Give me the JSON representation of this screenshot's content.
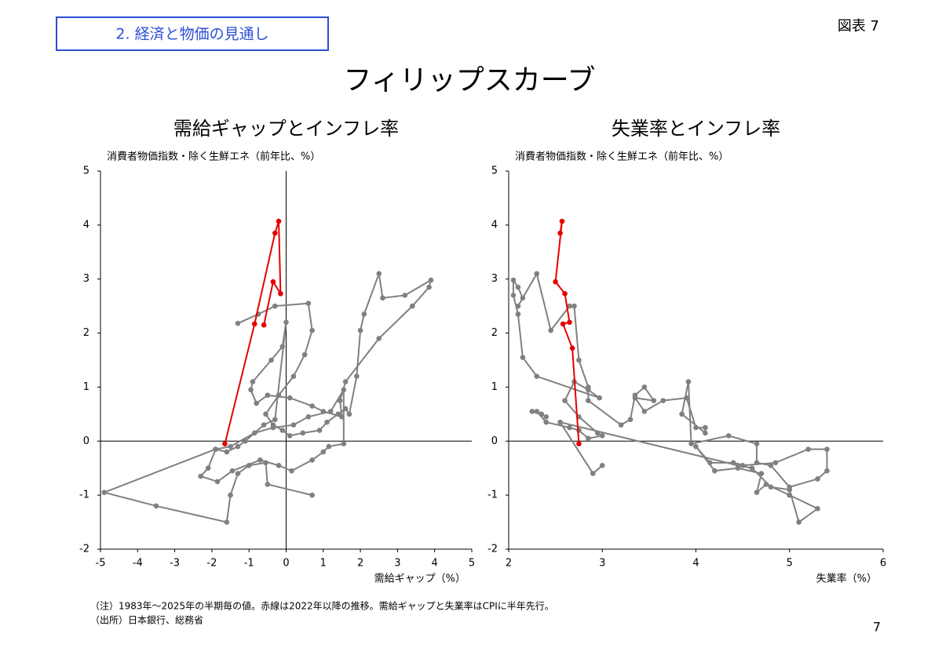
{
  "header": {
    "section": "2. 経済と物価の見通し",
    "figure_no": "図表 7",
    "title": "フィリップスカーブ"
  },
  "chart_data": [
    {
      "type": "scatter",
      "title": "需給ギャップとインフレ率",
      "y_label": "消費者物価指数・除く生鮮エネ（前年比、%）",
      "x_label": "需給ギャップ（%）",
      "xlim": [
        -5,
        5
      ],
      "xticks": [
        -5,
        -4,
        -3,
        -2,
        -1,
        0,
        1,
        2,
        3,
        4,
        5
      ],
      "ylim": [
        -2,
        5
      ],
      "yticks": [
        -2,
        -1,
        0,
        1,
        2,
        3,
        4,
        5
      ],
      "series": [
        {
          "color": "#808080",
          "x": [
            -1.3,
            -0.75,
            -0.3,
            0.6,
            0.7,
            0.5,
            0.2,
            -0.2,
            -0.55,
            -0.35,
            -0.1,
            0.1,
            0.45,
            0.9,
            1.1,
            1.4,
            1.6,
            1.7,
            1.9,
            2.0,
            2.1,
            2.5,
            2.6,
            3.2,
            3.9,
            3.85,
            3.4,
            2.5,
            1.6,
            1.45,
            1.5,
            1.0,
            0.7,
            0.1,
            -0.5,
            -0.8,
            -0.95,
            -0.9,
            -0.4,
            -0.1,
            0.0,
            -0.3,
            -0.6,
            -1.1,
            -1.3,
            -1.6,
            -1.9,
            -2.1,
            -2.3,
            -1.85,
            -1.45,
            -0.7,
            -0.2,
            0.15,
            0.7,
            1.0,
            1.15,
            1.55,
            1.55,
            1.2,
            0.6,
            0.2,
            -0.35,
            -0.85,
            -1.5,
            -1.9,
            -4.9,
            -3.5,
            -1.6,
            -1.5,
            -1.3,
            -1.0,
            -0.55,
            -0.5,
            0.7
          ],
          "values": [
            2.18,
            2.35,
            2.5,
            2.55,
            2.05,
            1.6,
            1.2,
            0.85,
            0.5,
            0.3,
            0.2,
            0.1,
            0.15,
            0.2,
            0.35,
            0.5,
            0.6,
            0.5,
            1.2,
            2.05,
            2.35,
            3.1,
            2.65,
            2.7,
            2.98,
            2.85,
            2.5,
            1.9,
            1.1,
            0.75,
            0.45,
            0.55,
            0.65,
            0.8,
            0.85,
            0.7,
            0.95,
            1.1,
            1.5,
            1.75,
            2.2,
            0.4,
            0.3,
            0.0,
            -0.1,
            -0.2,
            -0.15,
            -0.5,
            -0.65,
            -0.75,
            -0.55,
            -0.35,
            -0.45,
            -0.55,
            -0.35,
            -0.2,
            -0.1,
            -0.05,
            0.95,
            0.55,
            0.45,
            0.3,
            0.25,
            0.15,
            -0.1,
            -0.15,
            -0.95,
            -1.2,
            -1.5,
            -1.0,
            -0.6,
            -0.45,
            -0.4,
            -0.8,
            -1.0
          ]
        },
        {
          "color": "#e60000",
          "x": [
            -1.65,
            -0.85,
            -0.3,
            -0.2,
            -0.15,
            -0.35,
            -0.6
          ],
          "values": [
            -0.05,
            2.17,
            3.85,
            4.07,
            2.73,
            2.95,
            2.15
          ]
        }
      ]
    },
    {
      "type": "scatter",
      "title": "失業率とインフレ率",
      "y_label": "消費者物価指数・除く生鮮エネ（前年比、%）",
      "x_label": "失業率（%）",
      "xlim": [
        2,
        6
      ],
      "xticks": [
        2,
        3,
        4,
        5,
        6
      ],
      "ylim": [
        -2,
        5
      ],
      "yticks": [
        -2,
        -1,
        0,
        1,
        2,
        3,
        4,
        5
      ],
      "series": [
        {
          "color": "#808080",
          "x": [
            2.25,
            2.35,
            2.4,
            2.3,
            2.4,
            2.65,
            2.75,
            2.85,
            3.0,
            2.95,
            2.75,
            2.6,
            2.7,
            2.85,
            2.97,
            2.3,
            2.15,
            2.1,
            2.05,
            2.05,
            2.1,
            2.15,
            2.1,
            2.3,
            2.45,
            2.65,
            2.7,
            2.75,
            2.85,
            2.85,
            3.2,
            3.3,
            3.35,
            3.45,
            3.55,
            3.35,
            3.45,
            3.65,
            3.9,
            4.0,
            4.1,
            4.1,
            3.85,
            3.92,
            3.95,
            4.35,
            4.65,
            4.65,
            4.8,
            5.0,
            5.3,
            5.4,
            5.4,
            5.2,
            4.85,
            4.5,
            4.4,
            4.15,
            4.0,
            4.2,
            4.45,
            4.7,
            4.65,
            4.75,
            5.0,
            5.3,
            5.1,
            5.0,
            4.8,
            4.6,
            4.45,
            2.55,
            2.9,
            3.0
          ],
          "values": [
            0.55,
            0.5,
            0.45,
            0.55,
            0.35,
            0.25,
            0.2,
            0.05,
            0.1,
            0.15,
            0.45,
            0.75,
            1.1,
            0.95,
            0.8,
            1.2,
            1.55,
            2.35,
            2.7,
            2.98,
            2.85,
            2.65,
            2.5,
            3.1,
            2.05,
            2.5,
            2.5,
            1.5,
            1.0,
            0.75,
            0.3,
            0.4,
            0.85,
            1.0,
            0.75,
            0.8,
            0.55,
            0.75,
            0.8,
            0.25,
            0.25,
            0.15,
            0.5,
            1.1,
            -0.05,
            0.1,
            -0.05,
            -0.4,
            -0.45,
            -0.85,
            -0.7,
            -0.55,
            -0.15,
            -0.15,
            -0.4,
            -0.45,
            -0.4,
            -0.4,
            -0.1,
            -0.55,
            -0.5,
            -0.6,
            -0.95,
            -0.8,
            -1.0,
            -1.25,
            -1.5,
            -0.9,
            -0.85,
            -0.5,
            -0.45,
            0.35,
            -0.6,
            -0.45
          ]
        },
        {
          "color": "#e60000",
          "x": [
            2.75,
            2.68,
            2.58,
            2.65,
            2.6,
            2.5,
            2.57,
            2.55
          ],
          "values": [
            -0.05,
            1.72,
            2.17,
            2.2,
            2.73,
            2.95,
            4.07,
            3.85
          ]
        }
      ]
    }
  ],
  "notes": [
    "（注）1983年～2025年の半期毎の値。赤線は2022年以降の推移。需給ギャップと失業率はCPIに半年先行。",
    "（出所）日本銀行、総務省"
  ],
  "page_number": "7"
}
